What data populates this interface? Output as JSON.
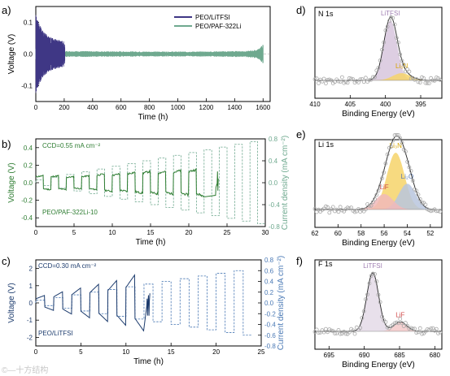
{
  "colors": {
    "purple": "#3f3785",
    "green": "#6fa98f",
    "green_dark": "#2e7d32",
    "blue_dark": "#1d3c6e",
    "blue_dashed": "#4a79b5",
    "lilac_fill": "#d7c5dd",
    "yellow_fill": "#f6d46a",
    "blue_fill": "#b8c6de",
    "pink_fill": "#f1b9ba",
    "gray_points": "#a8a8a8"
  },
  "panels": {
    "a": {
      "label": "a)"
    },
    "b": {
      "label": "b)",
      "ccd": "CCD=0.55 mA cm⁻²",
      "sample": "PEO/PAF-322Li-10"
    },
    "c": {
      "label": "c)",
      "ccd": "CCD=0.30 mA cm⁻²",
      "sample": "PEO/LiTFSI"
    },
    "d": {
      "label": "d)",
      "element": "N 1s"
    },
    "e": {
      "label": "e)",
      "element": "Li 1s"
    },
    "f": {
      "label": "f)",
      "element": "F 1s"
    }
  },
  "watermark": "©—十方结构",
  "chart_data": [
    {
      "id": "a",
      "type": "line",
      "xlabel": "Time (h)",
      "ylabel": "Voltage (V)",
      "xlim": [
        0,
        1650
      ],
      "ylim": [
        -0.15,
        0.15
      ],
      "xticks": [
        0,
        200,
        400,
        600,
        800,
        1000,
        1200,
        1400,
        1600
      ],
      "yticks": [
        -0.1,
        0.0,
        0.1
      ],
      "ytick_labels": [
        "-0.1",
        "0.0",
        "0.1"
      ],
      "legend": "top-right",
      "series": [
        {
          "name": "PEO/LiTFSI",
          "color": "#3f3785",
          "x": [
            0,
            10,
            40,
            80,
            120,
            160,
            200,
            210
          ],
          "amplitude": [
            0.135,
            0.11,
            0.08,
            0.06,
            0.05,
            0.045,
            0.04,
            0.0
          ]
        },
        {
          "name": "PEO/PAF-322Li",
          "color": "#6fa98f",
          "x": [
            0,
            100,
            400,
            800,
            1200,
            1500,
            1560,
            1600
          ],
          "amplitude": [
            0.02,
            0.01,
            0.009,
            0.008,
            0.008,
            0.01,
            0.014,
            0.03
          ]
        }
      ]
    },
    {
      "id": "b",
      "type": "line",
      "xlabel": "Time (h)",
      "ylabel": "Voltage (V)",
      "y2label": "Current density (mA cm⁻²)",
      "xlim": [
        0,
        30
      ],
      "ylim": [
        -0.5,
        0.5
      ],
      "y2lim": [
        -0.8,
        0.8
      ],
      "xticks": [
        0,
        5,
        10,
        15,
        20,
        25,
        30
      ],
      "yticks": [
        -0.4,
        -0.2,
        0.0,
        0.2,
        0.4
      ],
      "ytick_labels": [
        "-0.4",
        "-0.2",
        "0.0",
        "0.2",
        "0.4"
      ],
      "y2ticks": [
        -0.8,
        -0.4,
        0.0,
        0.4,
        0.8
      ],
      "y2tick_labels": [
        "-0.8",
        "-0.4",
        "0.0",
        "0.4",
        "0.8"
      ],
      "cycle_period_h": 2,
      "current_steps": [
        0.05,
        0.1,
        0.15,
        0.2,
        0.25,
        0.3,
        0.35,
        0.4,
        0.45,
        0.5,
        0.55,
        0.6,
        0.65,
        0.7,
        0.75
      ],
      "voltage_steps": [
        0.08,
        0.08,
        0.07,
        0.08,
        0.1,
        0.1,
        0.12,
        0.13,
        0.13,
        0.14,
        0.15
      ],
      "failure_time_h": 23.5
    },
    {
      "id": "c",
      "type": "line",
      "xlabel": "Time (h)",
      "ylabel": "Voltage (V)",
      "y2label": "Current density (mA cm⁻²)",
      "xlim": [
        0,
        25
      ],
      "ylim": [
        -2.5,
        2.5
      ],
      "y2lim": [
        -0.8,
        0.8
      ],
      "xticks": [
        0,
        5,
        10,
        15,
        20,
        25
      ],
      "yticks": [
        -2,
        -1,
        0,
        1,
        2
      ],
      "ytick_labels": [
        "-2",
        "-1",
        "0",
        "1",
        "2"
      ],
      "y2ticks": [
        -0.8,
        -0.6,
        -0.4,
        -0.2,
        0.0,
        0.2,
        0.4,
        0.6,
        0.8
      ],
      "y2tick_labels": [
        "-0.8",
        "-0.6",
        "-0.4",
        "-0.2",
        "0.0",
        "0.2",
        "0.4",
        "0.6",
        "0.8"
      ],
      "cycle_period_h": 2,
      "current_steps": [
        0.05,
        0.1,
        0.15,
        0.2,
        0.25,
        0.3,
        0.35,
        0.4,
        0.45,
        0.5,
        0.55,
        0.6
      ],
      "voltage_steps": [
        0.4,
        0.6,
        0.8,
        1.0,
        1.2,
        1.5
      ],
      "failure_time_h": 12.3
    },
    {
      "id": "d",
      "type": "line",
      "xlabel": "Binding Energy (eV)",
      "xlim": [
        410,
        392
      ],
      "xticks": [
        410,
        405,
        400,
        395
      ],
      "reversed_x": true,
      "peaks": [
        {
          "name": "LiTFSI",
          "center": 399.3,
          "height": 1.0,
          "fwhm": 2.2,
          "fill": "#d7c5dd"
        },
        {
          "name": "Li₃N",
          "center": 397.7,
          "height": 0.12,
          "fwhm": 3.0,
          "fill": "#f6d46a"
        }
      ]
    },
    {
      "id": "e",
      "type": "line",
      "xlabel": "Binding Energy (eV)",
      "xlim": [
        62,
        51
      ],
      "xticks": [
        62,
        60,
        58,
        56,
        54,
        52
      ],
      "reversed_x": true,
      "peaks": [
        {
          "name": "LiF",
          "center": 56.0,
          "height": 0.15,
          "fwhm": 1.8,
          "fill": "#f1b9ba"
        },
        {
          "name": "Li₃N",
          "center": 55.0,
          "height": 0.55,
          "fwhm": 1.8,
          "fill": "#f6d46a"
        },
        {
          "name": "Li₂O",
          "center": 54.0,
          "height": 0.25,
          "fwhm": 1.7,
          "fill": "#b8c6de"
        }
      ]
    },
    {
      "id": "f",
      "type": "line",
      "xlabel": "Binding Energy (eV)",
      "xlim": [
        697,
        679
      ],
      "xticks": [
        695,
        690,
        685,
        680
      ],
      "reversed_x": true,
      "peaks": [
        {
          "name": "LiTFSI",
          "center": 688.8,
          "height": 1.0,
          "fwhm": 2.0,
          "fill": "#e4dbe8"
        },
        {
          "name": "LiF",
          "center": 684.9,
          "height": 0.16,
          "fwhm": 2.2,
          "fill": "#f4c9c9"
        }
      ]
    }
  ]
}
